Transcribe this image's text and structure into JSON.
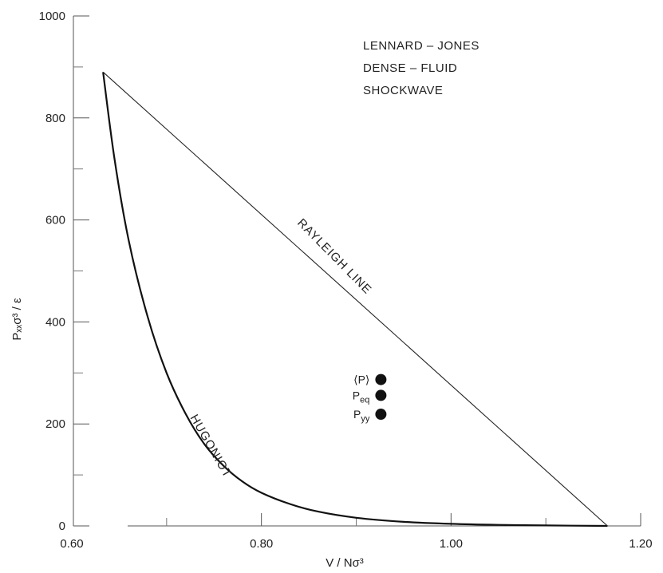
{
  "chart_data": {
    "type": "line",
    "title": "",
    "annotation": [
      "LENNARD – JONES",
      "DENSE – FLUID",
      "SHOCKWAVE"
    ],
    "xlabel": "V / Nσ³",
    "ylabel": "Pₓₓσ³ / ε",
    "xlim": [
      0.6,
      1.2
    ],
    "ylim": [
      0,
      1000
    ],
    "xticks": [
      {
        "value": 0.6,
        "label": "0.60"
      },
      {
        "value": 0.8,
        "label": "0.80"
      },
      {
        "value": 1.0,
        "label": "1.00"
      },
      {
        "value": 1.2,
        "label": "1.20"
      }
    ],
    "yticks": [
      {
        "value": 0,
        "label": "0"
      },
      {
        "value": 200,
        "label": "200"
      },
      {
        "value": 400,
        "label": "400"
      },
      {
        "value": 600,
        "label": "600"
      },
      {
        "value": 800,
        "label": "800"
      },
      {
        "value": 1000,
        "label": "1000"
      }
    ],
    "series": [
      {
        "name": "HUGONIOT",
        "x": [
          0.633,
          0.645,
          0.66,
          0.68,
          0.7,
          0.72,
          0.74,
          0.76,
          0.78,
          0.8,
          0.83,
          0.86,
          0.9,
          0.95,
          1.0,
          1.05,
          1.1,
          1.165
        ],
        "y": [
          890,
          720,
          560,
          410,
          300,
          220,
          160,
          118,
          87,
          65,
          43,
          28,
          16,
          8,
          4,
          2,
          1,
          0
        ]
      },
      {
        "name": "RAYLEIGH LINE",
        "x": [
          0.633,
          1.165
        ],
        "y": [
          890,
          0
        ]
      }
    ],
    "points": [
      {
        "label": "⟨P⟩",
        "x": 0.926,
        "y": 287
      },
      {
        "label": "P",
        "sub": "eq",
        "x": 0.926,
        "y": 256
      },
      {
        "label": "P",
        "sub": "yy",
        "x": 0.926,
        "y": 219
      }
    ]
  }
}
